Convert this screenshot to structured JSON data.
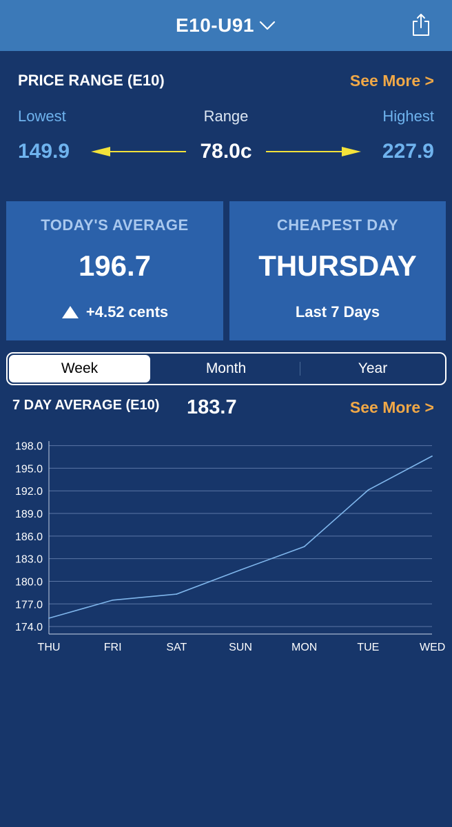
{
  "header": {
    "title": "E10-U91",
    "dropdown_icon": "chevron-down-icon",
    "share_icon": "share-icon"
  },
  "price_range": {
    "title": "PRICE RANGE (E10)",
    "see_more": "See More >",
    "lowest_label": "Lowest",
    "range_label": "Range",
    "highest_label": "Highest",
    "lowest_value": "149.9",
    "range_value": "78.0c",
    "highest_value": "227.9",
    "arrow_color": "#f3e23a"
  },
  "cards": {
    "today_title": "TODAY'S AVERAGE",
    "today_value": "196.7",
    "today_change": "+4.52 cents",
    "cheapest_title": "CHEAPEST DAY",
    "cheapest_value": "THURSDAY",
    "cheapest_sub": "Last 7 Days"
  },
  "tabs": {
    "items": [
      "Week",
      "Month",
      "Year"
    ],
    "selected": "Week"
  },
  "seven_day": {
    "title": "7 DAY AVERAGE (E10)",
    "value": "183.7",
    "see_more": "See More >"
  },
  "colors": {
    "background": "#17366a",
    "header": "#3b79b8",
    "card": "#2b61aa",
    "accent_orange": "#f0a847",
    "accent_blue": "#6fb3ee",
    "line": "#7fb6ec"
  },
  "chart_data": {
    "type": "line",
    "categories": [
      "THU",
      "FRI",
      "SAT",
      "SUN",
      "MON",
      "TUE",
      "WED"
    ],
    "series": [
      {
        "values": [
          175.1,
          177.5,
          178.3,
          181.5,
          184.6,
          192.1,
          196.6
        ]
      }
    ],
    "ylim": [
      173.0,
      198.6
    ],
    "yticks": [
      "198.0",
      "195.0",
      "192.0",
      "189.0",
      "186.0",
      "183.0",
      "180.0",
      "177.0",
      "174.0"
    ],
    "grid": true
  }
}
